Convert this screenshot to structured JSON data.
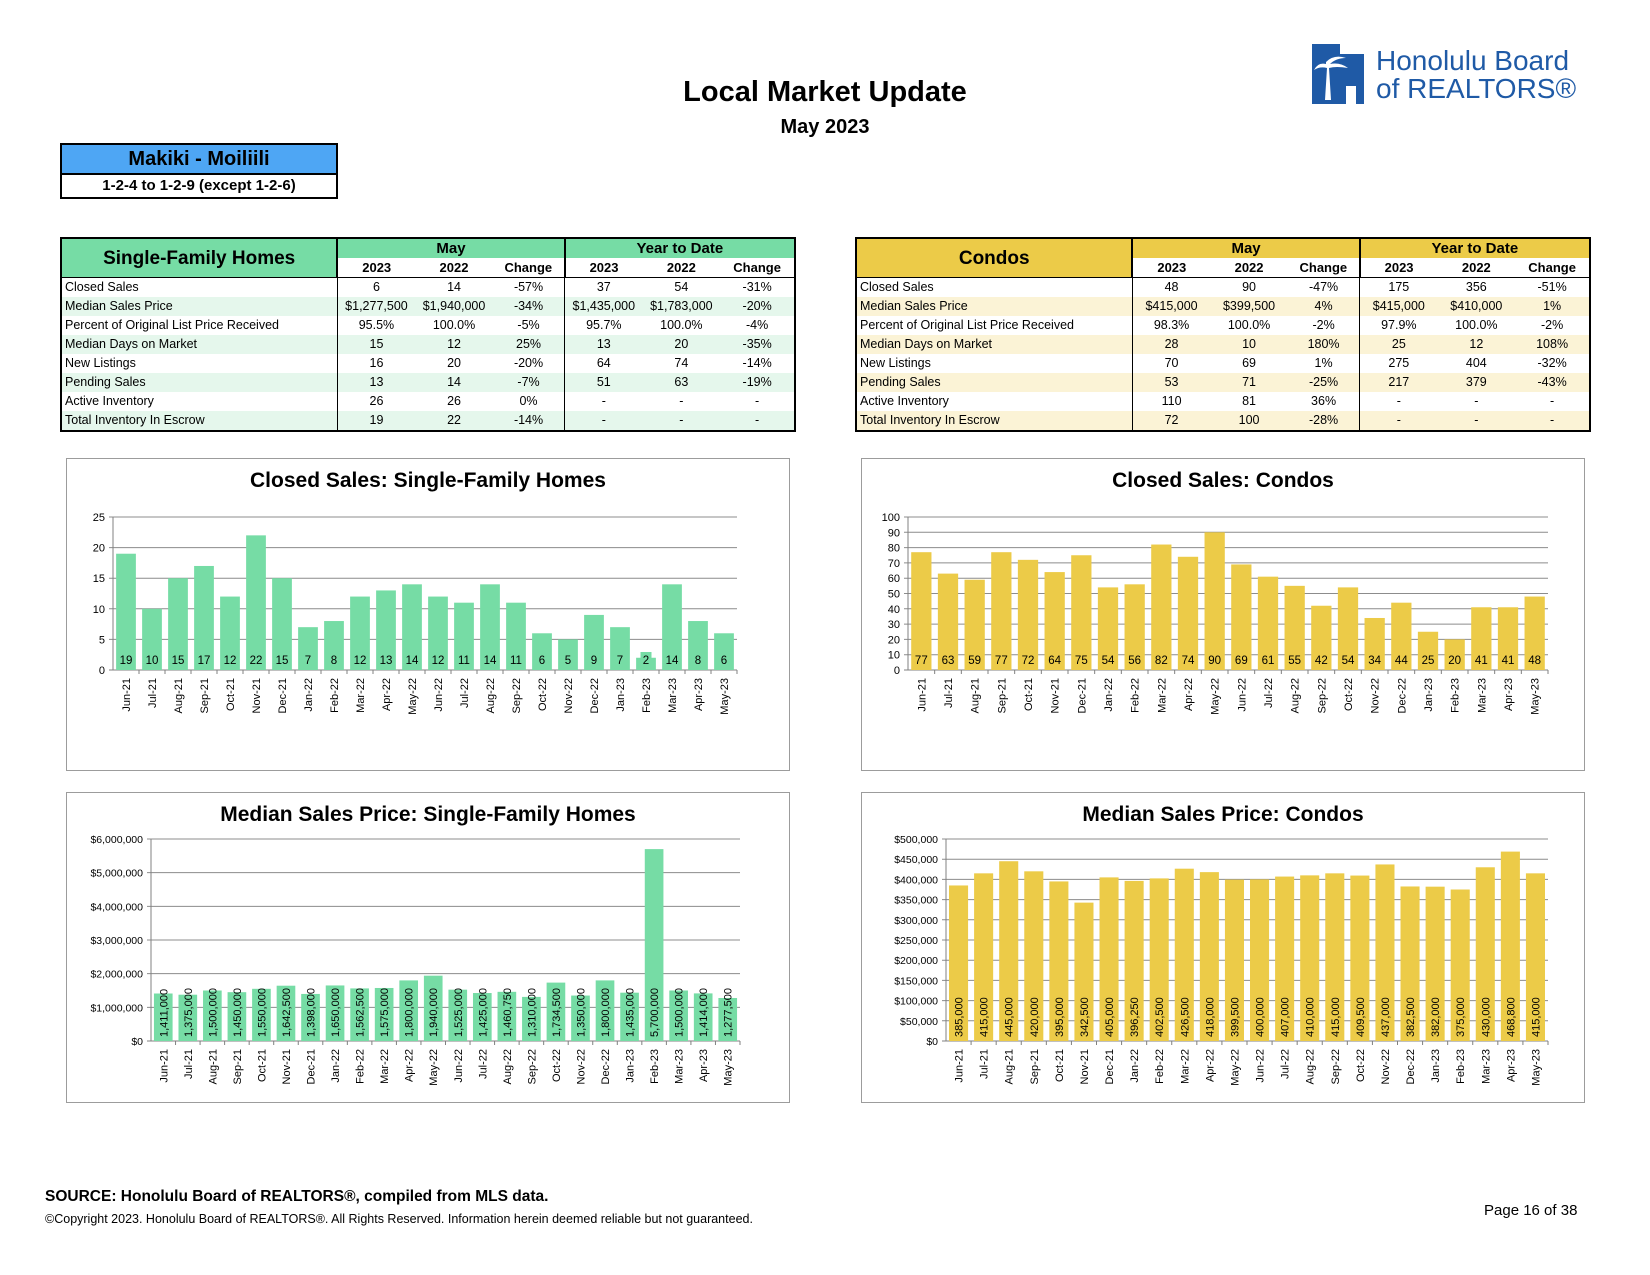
{
  "header": {
    "title": "Local Market Update",
    "subtitle": "May 2023",
    "logo_text_line1": "Honolulu Board",
    "logo_text_line2": "of REALTORS®"
  },
  "area": {
    "name": "Makiki - Moiliili",
    "range": "1-2-4 to 1-2-9 (except 1-2-6)"
  },
  "colors": {
    "sfh": "#76dca5",
    "condo": "#eccb48",
    "area_box": "#4ea6f4",
    "sfh_band": "#e5f7ec",
    "condo_band": "#fbf3d6"
  },
  "sfh_table": {
    "title": "Single-Family Homes",
    "group_month": "May",
    "group_ytd": "Year to Date",
    "sub_headers": [
      "2023",
      "2022",
      "Change",
      "2023",
      "2022",
      "Change"
    ],
    "rows": [
      {
        "label": "Closed Sales",
        "values": [
          "6",
          "14",
          "-57%",
          "37",
          "54",
          "-31%"
        ]
      },
      {
        "label": "Median Sales Price",
        "values": [
          "$1,277,500",
          "$1,940,000",
          "-34%",
          "$1,435,000",
          "$1,783,000",
          "-20%"
        ]
      },
      {
        "label": "Percent of Original List Price Received",
        "values": [
          "95.5%",
          "100.0%",
          "-5%",
          "95.7%",
          "100.0%",
          "-4%"
        ]
      },
      {
        "label": "Median Days on Market",
        "values": [
          "15",
          "12",
          "25%",
          "13",
          "20",
          "-35%"
        ]
      },
      {
        "label": "New Listings",
        "values": [
          "16",
          "20",
          "-20%",
          "64",
          "74",
          "-14%"
        ]
      },
      {
        "label": "Pending Sales",
        "values": [
          "13",
          "14",
          "-7%",
          "51",
          "63",
          "-19%"
        ]
      },
      {
        "label": "Active Inventory",
        "values": [
          "26",
          "26",
          "0%",
          "-",
          "-",
          "-"
        ]
      },
      {
        "label": "Total Inventory In Escrow",
        "values": [
          "19",
          "22",
          "-14%",
          "-",
          "-",
          "-"
        ]
      }
    ]
  },
  "condo_table": {
    "title": "Condos",
    "group_month": "May",
    "group_ytd": "Year to Date",
    "sub_headers": [
      "2023",
      "2022",
      "Change",
      "2023",
      "2022",
      "Change"
    ],
    "rows": [
      {
        "label": "Closed Sales",
        "values": [
          "48",
          "90",
          "-47%",
          "175",
          "356",
          "-51%"
        ]
      },
      {
        "label": "Median Sales Price",
        "values": [
          "$415,000",
          "$399,500",
          "4%",
          "$415,000",
          "$410,000",
          "1%"
        ]
      },
      {
        "label": "Percent of Original List Price Received",
        "values": [
          "98.3%",
          "100.0%",
          "-2%",
          "97.9%",
          "100.0%",
          "-2%"
        ]
      },
      {
        "label": "Median Days on Market",
        "values": [
          "28",
          "10",
          "180%",
          "25",
          "12",
          "108%"
        ]
      },
      {
        "label": "New Listings",
        "values": [
          "70",
          "69",
          "1%",
          "275",
          "404",
          "-32%"
        ]
      },
      {
        "label": "Pending Sales",
        "values": [
          "53",
          "71",
          "-25%",
          "217",
          "379",
          "-43%"
        ]
      },
      {
        "label": "Active Inventory",
        "values": [
          "110",
          "81",
          "36%",
          "-",
          "-",
          "-"
        ]
      },
      {
        "label": "Total Inventory In Escrow",
        "values": [
          "72",
          "100",
          "-28%",
          "-",
          "-",
          "-"
        ]
      }
    ]
  },
  "chart_data": [
    {
      "id": "sfh-closed",
      "type": "bar",
      "title": "Closed Sales: Single-Family Homes",
      "categories": [
        "Jun-21",
        "Jul-21",
        "Aug-21",
        "Sep-21",
        "Oct-21",
        "Nov-21",
        "Dec-21",
        "Jan-22",
        "Feb-22",
        "Mar-22",
        "Apr-22",
        "May-22",
        "Jun-22",
        "Jul-22",
        "Aug-22",
        "Sep-22",
        "Oct-22",
        "Nov-22",
        "Dec-22",
        "Jan-23",
        "Feb-23",
        "Mar-23",
        "Apr-23",
        "May-23"
      ],
      "values": [
        19,
        10,
        15,
        17,
        12,
        22,
        15,
        7,
        8,
        12,
        13,
        14,
        12,
        11,
        14,
        11,
        6,
        5,
        9,
        7,
        2,
        14,
        8,
        6
      ],
      "labels": [
        "19",
        "10",
        "15",
        "17",
        "12",
        "22",
        "15",
        "7",
        "8",
        "12",
        "13",
        "14",
        "12",
        "11",
        "14",
        "11",
        "6",
        "5",
        "9",
        "7",
        "2",
        "14",
        "8",
        "6"
      ],
      "yticks": [
        0,
        5,
        10,
        15,
        20,
        25
      ],
      "ytick_labels": [
        "0",
        "5",
        "10",
        "15",
        "20",
        "25"
      ],
      "ylim": [
        0,
        25
      ],
      "color": "#76dca5",
      "label_mode": "horizontal"
    },
    {
      "id": "condo-closed",
      "type": "bar",
      "title": "Closed Sales: Condos",
      "categories": [
        "Jun-21",
        "Jul-21",
        "Aug-21",
        "Sep-21",
        "Oct-21",
        "Nov-21",
        "Dec-21",
        "Jan-22",
        "Feb-22",
        "Mar-22",
        "Apr-22",
        "May-22",
        "Jun-22",
        "Jul-22",
        "Aug-22",
        "Sep-22",
        "Oct-22",
        "Nov-22",
        "Dec-22",
        "Jan-23",
        "Feb-23",
        "Mar-23",
        "Apr-23",
        "May-23"
      ],
      "values": [
        77,
        63,
        59,
        77,
        72,
        64,
        75,
        54,
        56,
        82,
        74,
        90,
        69,
        61,
        55,
        42,
        54,
        34,
        44,
        25,
        20,
        41,
        41,
        48
      ],
      "labels": [
        "77",
        "63",
        "59",
        "77",
        "72",
        "64",
        "75",
        "54",
        "56",
        "82",
        "74",
        "90",
        "69",
        "61",
        "55",
        "42",
        "54",
        "34",
        "44",
        "25",
        "20",
        "41",
        "41",
        "48"
      ],
      "yticks": [
        0,
        10,
        20,
        30,
        40,
        50,
        60,
        70,
        80,
        90,
        100
      ],
      "ytick_labels": [
        "0",
        "10",
        "20",
        "30",
        "40",
        "50",
        "60",
        "70",
        "80",
        "90",
        "100"
      ],
      "ylim": [
        0,
        100
      ],
      "color": "#eccb48",
      "label_mode": "horizontal"
    },
    {
      "id": "sfh-median",
      "type": "bar",
      "title": "Median Sales Price: Single-Family Homes",
      "categories": [
        "Jun-21",
        "Jul-21",
        "Aug-21",
        "Sep-21",
        "Oct-21",
        "Nov-21",
        "Dec-21",
        "Jan-22",
        "Feb-22",
        "Mar-22",
        "Apr-22",
        "May-22",
        "Jun-22",
        "Jul-22",
        "Aug-22",
        "Sep-22",
        "Oct-22",
        "Nov-22",
        "Dec-22",
        "Jan-23",
        "Feb-23",
        "Mar-23",
        "Apr-23",
        "May-23"
      ],
      "values": [
        1411000,
        1375000,
        1500000,
        1450000,
        1550000,
        1642500,
        1398000,
        1650000,
        1562500,
        1575000,
        1800000,
        1940000,
        1525000,
        1425000,
        1460750,
        1310000,
        1734500,
        1350000,
        1800000,
        1435000,
        5700000,
        1500000,
        1414000,
        1277500
      ],
      "labels": [
        "1,411,000",
        "1,375,000",
        "1,500,000",
        "1,450,000",
        "1,550,000",
        "1,642,500",
        "1,398,000",
        "1,650,000",
        "1,562,500",
        "1,575,000",
        "1,800,000",
        "1,940,000",
        "1,525,000",
        "1,425,000",
        "1,460,750",
        "1,310,000",
        "1,734,500",
        "1,350,000",
        "1,800,000",
        "1,435,000",
        "5,700,000",
        "1,500,000",
        "1,414,000",
        "1,277,500"
      ],
      "yticks": [
        0,
        1000000,
        2000000,
        3000000,
        4000000,
        5000000,
        6000000
      ],
      "ytick_labels": [
        "$0",
        "$1,000,000",
        "$2,000,000",
        "$3,000,000",
        "$4,000,000",
        "$5,000,000",
        "$6,000,000"
      ],
      "ylim": [
        0,
        6000000
      ],
      "color": "#76dca5",
      "label_mode": "vertical"
    },
    {
      "id": "condo-median",
      "type": "bar",
      "title": "Median Sales Price: Condos",
      "categories": [
        "Jun-21",
        "Jul-21",
        "Aug-21",
        "Sep-21",
        "Oct-21",
        "Nov-21",
        "Dec-21",
        "Jan-22",
        "Feb-22",
        "Mar-22",
        "Apr-22",
        "May-22",
        "Jun-22",
        "Jul-22",
        "Aug-22",
        "Sep-22",
        "Oct-22",
        "Nov-22",
        "Dec-22",
        "Jan-23",
        "Feb-23",
        "Mar-23",
        "Apr-23",
        "May-23"
      ],
      "values": [
        385000,
        415000,
        445000,
        420000,
        395000,
        342500,
        405000,
        396250,
        402500,
        426500,
        418000,
        399500,
        400000,
        407000,
        410000,
        415000,
        409500,
        437000,
        382500,
        382000,
        375000,
        430000,
        468800,
        415000
      ],
      "labels": [
        "385,000",
        "415,000",
        "445,000",
        "420,000",
        "395,000",
        "342,500",
        "405,000",
        "396,250",
        "402,500",
        "426,500",
        "418,000",
        "399,500",
        "400,000",
        "407,000",
        "410,000",
        "415,000",
        "409,500",
        "437,000",
        "382,500",
        "382,000",
        "375,000",
        "430,000",
        "468,800",
        "415,000"
      ],
      "yticks": [
        0,
        50000,
        100000,
        150000,
        200000,
        250000,
        300000,
        350000,
        400000,
        450000,
        500000
      ],
      "ytick_labels": [
        "$0",
        "$50,000",
        "$100,000",
        "$150,000",
        "$200,000",
        "$250,000",
        "$300,000",
        "$350,000",
        "$400,000",
        "$450,000",
        "$500,000"
      ],
      "ylim": [
        0,
        500000
      ],
      "color": "#eccb48",
      "label_mode": "vertical"
    }
  ],
  "footer": {
    "source": "SOURCE: Honolulu Board of REALTORS®, compiled from MLS data.",
    "copyright": "©Copyright 2023. Honolulu Board of REALTORS®. All Rights Reserved. Information herein deemed reliable but not guaranteed.",
    "page": "Page 16 of 38"
  }
}
